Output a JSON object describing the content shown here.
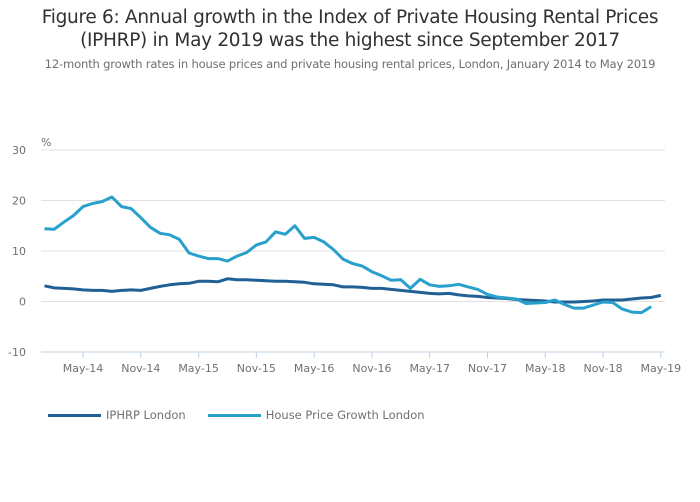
{
  "chart_data": {
    "type": "line",
    "title": "Figure 6: Annual growth in the Index of Private Housing Rental Prices (IPHRP) in May 2019 was the highest since September 2017",
    "title_lines": [
      "Figure 6: Annual growth in the Index of Private Housing Rental Prices",
      "(IPHRP) in May 2019 was the highest since September 2017"
    ],
    "subtitle": "12-month growth rates in house prices and private housing rental prices, London, January 2014 to May 2019",
    "xlabel": "",
    "ylabel": "%",
    "ylim": [
      -10,
      30
    ],
    "yticks": [
      -10,
      0,
      10,
      20,
      30
    ],
    "x_start": "Jan-14",
    "x_end": "May-19",
    "xticks": [
      {
        "label": "May-14",
        "index": 4
      },
      {
        "label": "Nov-14",
        "index": 10
      },
      {
        "label": "May-15",
        "index": 16
      },
      {
        "label": "Nov-15",
        "index": 22
      },
      {
        "label": "May-16",
        "index": 28
      },
      {
        "label": "Nov-16",
        "index": 34
      },
      {
        "label": "May-17",
        "index": 40
      },
      {
        "label": "Nov-17",
        "index": 46
      },
      {
        "label": "May-18",
        "index": 52
      },
      {
        "label": "Nov-18",
        "index": 58
      },
      {
        "label": "May-19",
        "index": 64
      }
    ],
    "grid": true,
    "legend_position": "bottom-left",
    "series": [
      {
        "name": "IPHRP London",
        "color": "#206095",
        "values": [
          3.1,
          2.7,
          2.6,
          2.5,
          2.3,
          2.2,
          2.2,
          2.0,
          2.2,
          2.3,
          2.2,
          2.6,
          3.0,
          3.3,
          3.5,
          3.6,
          4.0,
          4.0,
          3.9,
          4.5,
          4.3,
          4.3,
          4.2,
          4.1,
          4.0,
          4.0,
          3.9,
          3.8,
          3.5,
          3.4,
          3.3,
          2.9,
          2.9,
          2.8,
          2.6,
          2.6,
          2.4,
          2.2,
          2.0,
          1.8,
          1.6,
          1.5,
          1.6,
          1.3,
          1.1,
          1.0,
          0.8,
          0.7,
          0.6,
          0.4,
          0.3,
          0.2,
          0.1,
          -0.1,
          -0.1,
          -0.1,
          0.0,
          0.1,
          0.3,
          0.3,
          0.3,
          0.5,
          0.7,
          0.8,
          1.2
        ]
      },
      {
        "name": "House Price Growth London",
        "color": "#27a0cc",
        "values": [
          14.4,
          14.3,
          15.7,
          17.0,
          18.8,
          19.4,
          19.8,
          20.7,
          18.8,
          18.4,
          16.6,
          14.7,
          13.5,
          13.2,
          12.3,
          9.6,
          9.0,
          8.5,
          8.5,
          8.0,
          9.0,
          9.7,
          11.2,
          11.8,
          13.8,
          13.3,
          15.0,
          12.5,
          12.7,
          11.8,
          10.3,
          8.4,
          7.5,
          7.0,
          5.9,
          5.1,
          4.2,
          4.3,
          2.6,
          4.4,
          3.3,
          3.0,
          3.1,
          3.4,
          2.9,
          2.4,
          1.4,
          0.9,
          0.7,
          0.5,
          -0.4,
          -0.3,
          -0.2,
          0.3,
          -0.6,
          -1.3,
          -1.3,
          -0.7,
          -0.1,
          -0.2,
          -1.5,
          -2.1,
          -2.2,
          -1.0
        ]
      }
    ]
  }
}
